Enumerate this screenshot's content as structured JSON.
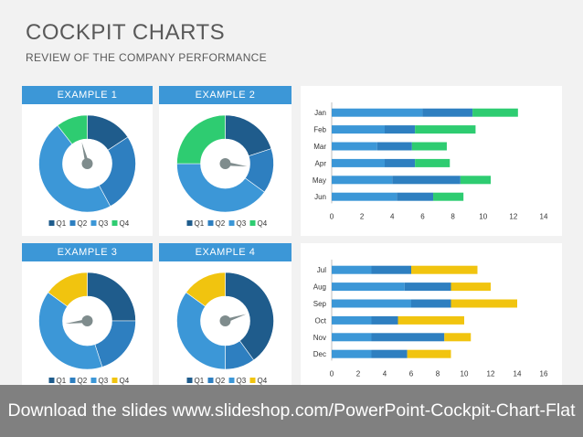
{
  "header": {
    "title": "COCKPIT CHARTS",
    "subtitle": "REVIEW OF THE COMPANY PERFORMANCE"
  },
  "colors": {
    "Q1": "#1f5c8c",
    "Q2": "#2e7fc0",
    "Q3": "#3c97d7",
    "Q4": "#2ecc71",
    "Q4_alt": "#f1c40f",
    "needle": "#7f8c8d",
    "header_bg": "#3c97d7"
  },
  "chart_data": [
    {
      "type": "pie",
      "title": "EXAMPLE 1",
      "categories": [
        "Q1",
        "Q2",
        "Q3",
        "Q4"
      ],
      "values": [
        15,
        25,
        45,
        10
      ],
      "legend": [
        "Q1",
        "Q2",
        "Q3",
        "Q4"
      ],
      "legend_position": "bottom",
      "needle_value": 0.96
    },
    {
      "type": "pie",
      "title": "EXAMPLE 2",
      "categories": [
        "Q1",
        "Q2",
        "Q3",
        "Q4"
      ],
      "values": [
        20,
        15,
        40,
        25
      ],
      "legend": [
        "Q1",
        "Q2",
        "Q3",
        "Q4"
      ],
      "legend_position": "bottom",
      "needle_value": 0.27
    },
    {
      "type": "pie",
      "title": "EXAMPLE 3",
      "categories": [
        "Q1",
        "Q2",
        "Q3",
        "Q4"
      ],
      "values": [
        25,
        20,
        40,
        15
      ],
      "legend": [
        "Q1",
        "Q2",
        "Q3",
        "Q4"
      ],
      "legend_position": "bottom",
      "needle_value": 0.73
    },
    {
      "type": "pie",
      "title": "EXAMPLE 4",
      "categories": [
        "Q1",
        "Q2",
        "Q3",
        "Q4"
      ],
      "values": [
        40,
        10,
        35,
        15
      ],
      "legend": [
        "Q1",
        "Q2",
        "Q3",
        "Q4"
      ],
      "legend_position": "bottom",
      "needle_value": 0.2
    },
    {
      "type": "bar",
      "orientation": "horizontal",
      "stacked": true,
      "categories": [
        "Jan",
        "Feb",
        "Mar",
        "Apr",
        "May",
        "Jun"
      ],
      "series": [
        {
          "values": [
            6,
            3.5,
            3,
            3.5,
            4,
            4.3
          ]
        },
        {
          "values": [
            3.3,
            2,
            2.3,
            2,
            4.5,
            2.4
          ]
        },
        {
          "values": [
            3,
            4,
            2.3,
            2.3,
            2,
            2
          ]
        }
      ],
      "xlim": [
        0,
        14
      ],
      "xticks": [
        0,
        2,
        4,
        6,
        8,
        10,
        12,
        14
      ],
      "grid": false
    },
    {
      "type": "bar",
      "orientation": "horizontal",
      "stacked": true,
      "categories": [
        "Jul",
        "Aug",
        "Sep",
        "Oct",
        "Nov",
        "Dec"
      ],
      "series": [
        {
          "values": [
            3,
            5.5,
            6,
            3,
            3,
            3
          ]
        },
        {
          "values": [
            3,
            3.5,
            3,
            2,
            5.5,
            2.7
          ]
        },
        {
          "values": [
            5,
            3,
            5,
            5,
            2,
            3.3
          ]
        }
      ],
      "xlim": [
        0,
        16
      ],
      "xticks": [
        0,
        2,
        4,
        6,
        8,
        10,
        12,
        14,
        16
      ],
      "grid": false
    }
  ],
  "footer": {
    "banner_text": "Download the slides www.slideshop.com/PowerPoint-Cockpit-Chart-Flat"
  }
}
